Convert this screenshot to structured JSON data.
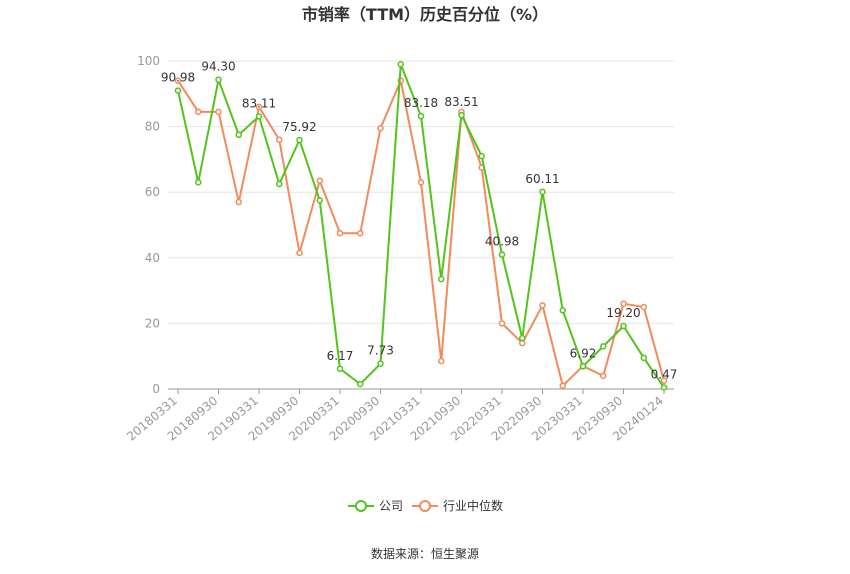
{
  "chart_data": {
    "type": "line",
    "title": "市销率（TTM）历史百分位（%）",
    "source": "数据来源：恒生聚源",
    "ylim": [
      0,
      100
    ],
    "yticks": [
      0,
      20,
      40,
      60,
      80,
      100
    ],
    "grid": true,
    "legend_position": "bottom",
    "x_tick_labels": [
      "20180331",
      "20180930",
      "20190331",
      "20190930",
      "20200331",
      "20200930",
      "20210331",
      "20210930",
      "20220331",
      "20220930",
      "20230331",
      "20230930",
      "20240124"
    ],
    "x": [
      "20180331",
      "20180630",
      "20180930",
      "20181231",
      "20190331",
      "20190630",
      "20190930",
      "20191231",
      "20200331",
      "20200630",
      "20200930",
      "20201231",
      "20210331",
      "20210630",
      "20210930",
      "20211231",
      "20220331",
      "20220630",
      "20220930",
      "20221231",
      "20230331",
      "20230630",
      "20230930",
      "20231231",
      "20240124"
    ],
    "series": [
      {
        "name": "公司",
        "color": "#52c41a",
        "values": [
          90.98,
          63,
          94.3,
          77.5,
          83.11,
          62.5,
          75.92,
          57.5,
          6.17,
          1.5,
          7.73,
          99,
          83.18,
          33.5,
          83.51,
          71,
          40.98,
          15.5,
          60.11,
          24,
          6.92,
          13,
          19.2,
          9.5,
          0.47
        ]
      },
      {
        "name": "行业中位数",
        "color": "#f28a5c",
        "values": [
          94,
          84.5,
          84.5,
          57,
          86,
          76,
          41.5,
          63.5,
          47.5,
          47.5,
          79.5,
          94,
          63,
          8.5,
          84.5,
          67.5,
          20,
          14,
          25.5,
          1,
          7,
          4,
          26,
          25,
          2.5
        ]
      }
    ],
    "data_labels": [
      {
        "index": 0,
        "text": "90.98"
      },
      {
        "index": 2,
        "text": "94.30"
      },
      {
        "index": 4,
        "text": "83.11"
      },
      {
        "index": 6,
        "text": "75.92"
      },
      {
        "index": 8,
        "text": "6.17"
      },
      {
        "index": 10,
        "text": "7.73"
      },
      {
        "index": 12,
        "text": "83.18"
      },
      {
        "index": 14,
        "text": "83.51"
      },
      {
        "index": 16,
        "text": "40.98"
      },
      {
        "index": 18,
        "text": "60.11"
      },
      {
        "index": 20,
        "text": "6.92"
      },
      {
        "index": 22,
        "text": "19.20"
      },
      {
        "index": 24,
        "text": "0.47"
      }
    ]
  }
}
